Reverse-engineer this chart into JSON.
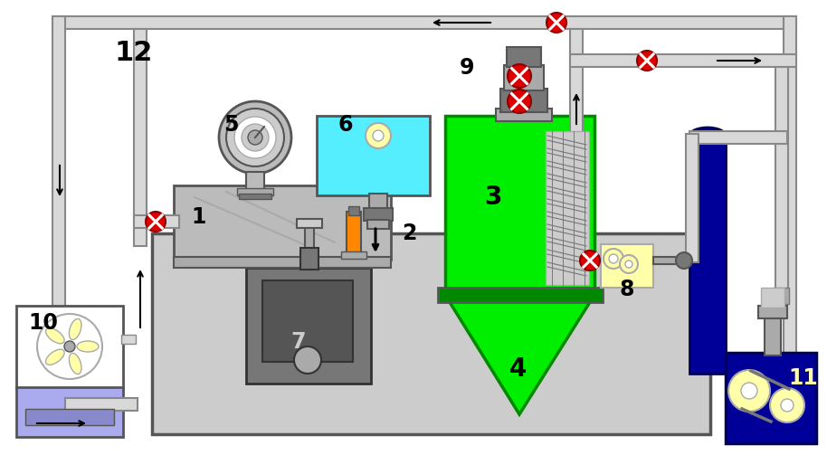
{
  "bg_color": "#ffffff",
  "colors": {
    "green": "#00ee00",
    "dark_green": "#008800",
    "blue_dark": "#000099",
    "blue_light": "#aaaaee",
    "blue_medium": "#8888cc",
    "cyan_light": "#55eeff",
    "gray_light": "#cccccc",
    "gray_medium": "#aaaaaa",
    "gray_dark": "#777777",
    "orange": "#ff8800",
    "red_valve": "#dd0000",
    "yellow_light": "#ffffaa",
    "white": "#ffffff",
    "black": "#000000",
    "silver": "#bbbbbb",
    "dark_gray": "#555555",
    "pipe_fill": "#d8d8d8",
    "pipe_edge": "#888888"
  }
}
